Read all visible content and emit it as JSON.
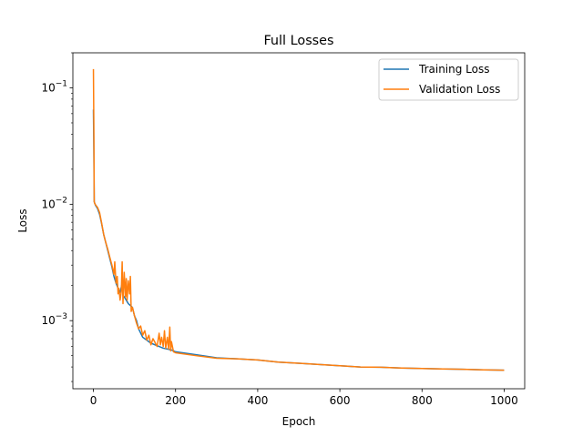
{
  "chart_data": {
    "type": "line",
    "title": "Full Losses",
    "xlabel": "Epoch",
    "ylabel": "Loss",
    "xscale": "linear",
    "yscale": "log",
    "xlim": [
      -50,
      1050
    ],
    "ylim": [
      0.00026,
      0.2
    ],
    "xticks": [
      0,
      200,
      400,
      600,
      800,
      1000
    ],
    "yticks": [
      {
        "value": 0.1,
        "base": "10",
        "exp": "−1"
      },
      {
        "value": 0.01,
        "base": "10",
        "exp": "−2"
      },
      {
        "value": 0.001,
        "base": "10",
        "exp": "−3"
      }
    ],
    "grid": false,
    "legend_position": "top-right",
    "series": [
      {
        "name": "Training Loss",
        "color": "#1f77b4",
        "x": [
          0,
          1,
          2,
          5,
          10,
          15,
          20,
          25,
          30,
          35,
          40,
          45,
          50,
          55,
          60,
          65,
          70,
          72,
          75,
          80,
          85,
          90,
          95,
          100,
          105,
          110,
          120,
          130,
          140,
          150,
          160,
          170,
          180,
          190,
          200,
          250,
          300,
          350,
          400,
          450,
          500,
          550,
          600,
          650,
          700,
          750,
          800,
          850,
          900,
          950,
          1000
        ],
        "y": [
          0.065,
          0.03,
          0.0105,
          0.0098,
          0.0092,
          0.0082,
          0.0068,
          0.0055,
          0.0047,
          0.004,
          0.0034,
          0.0029,
          0.0024,
          0.0021,
          0.0019,
          0.00175,
          0.0021,
          0.00165,
          0.0016,
          0.0015,
          0.0014,
          0.00135,
          0.0013,
          0.0011,
          0.001,
          0.00085,
          0.00072,
          0.00068,
          0.00064,
          0.00062,
          0.0006,
          0.00058,
          0.00057,
          0.00056,
          0.00054,
          0.00051,
          0.00048,
          0.00047,
          0.00046,
          0.00044,
          0.00043,
          0.00042,
          0.00041,
          0.0004,
          0.000398,
          0.000392,
          0.000388,
          0.000385,
          0.000382,
          0.000378,
          0.000375
        ]
      },
      {
        "name": "Validation Loss",
        "color": "#ff7f0e",
        "x": [
          0,
          1,
          2,
          3,
          5,
          10,
          15,
          20,
          25,
          30,
          35,
          40,
          45,
          50,
          52,
          55,
          58,
          60,
          62,
          65,
          68,
          70,
          72,
          75,
          78,
          80,
          82,
          85,
          88,
          90,
          92,
          95,
          100,
          105,
          110,
          115,
          120,
          125,
          130,
          135,
          140,
          145,
          150,
          155,
          160,
          163,
          166,
          170,
          173,
          176,
          180,
          183,
          186,
          188,
          190,
          195,
          200,
          250,
          300,
          350,
          400,
          450,
          500,
          550,
          600,
          650,
          700,
          750,
          800,
          850,
          900,
          950,
          1000
        ],
        "y": [
          0.145,
          0.05,
          0.0105,
          0.0102,
          0.0099,
          0.0094,
          0.0085,
          0.0069,
          0.0055,
          0.0047,
          0.0041,
          0.0035,
          0.003,
          0.0025,
          0.0032,
          0.0021,
          0.0024,
          0.0017,
          0.0019,
          0.0015,
          0.0018,
          0.0032,
          0.0014,
          0.0026,
          0.0016,
          0.0023,
          0.0015,
          0.0022,
          0.0017,
          0.0024,
          0.0012,
          0.0013,
          0.0011,
          0.00095,
          0.00085,
          0.0009,
          0.00075,
          0.00082,
          0.00068,
          0.00075,
          0.00062,
          0.0007,
          0.00065,
          0.0006,
          0.00078,
          0.00062,
          0.00072,
          0.0006,
          0.00082,
          0.00058,
          0.00072,
          0.00057,
          0.00088,
          0.00055,
          0.00066,
          0.00054,
          0.00053,
          0.0005,
          0.000475,
          0.00047,
          0.00046,
          0.00044,
          0.00043,
          0.00042,
          0.00041,
          0.0004,
          0.000398,
          0.000392,
          0.000388,
          0.000385,
          0.000382,
          0.000378,
          0.000375
        ]
      }
    ]
  }
}
